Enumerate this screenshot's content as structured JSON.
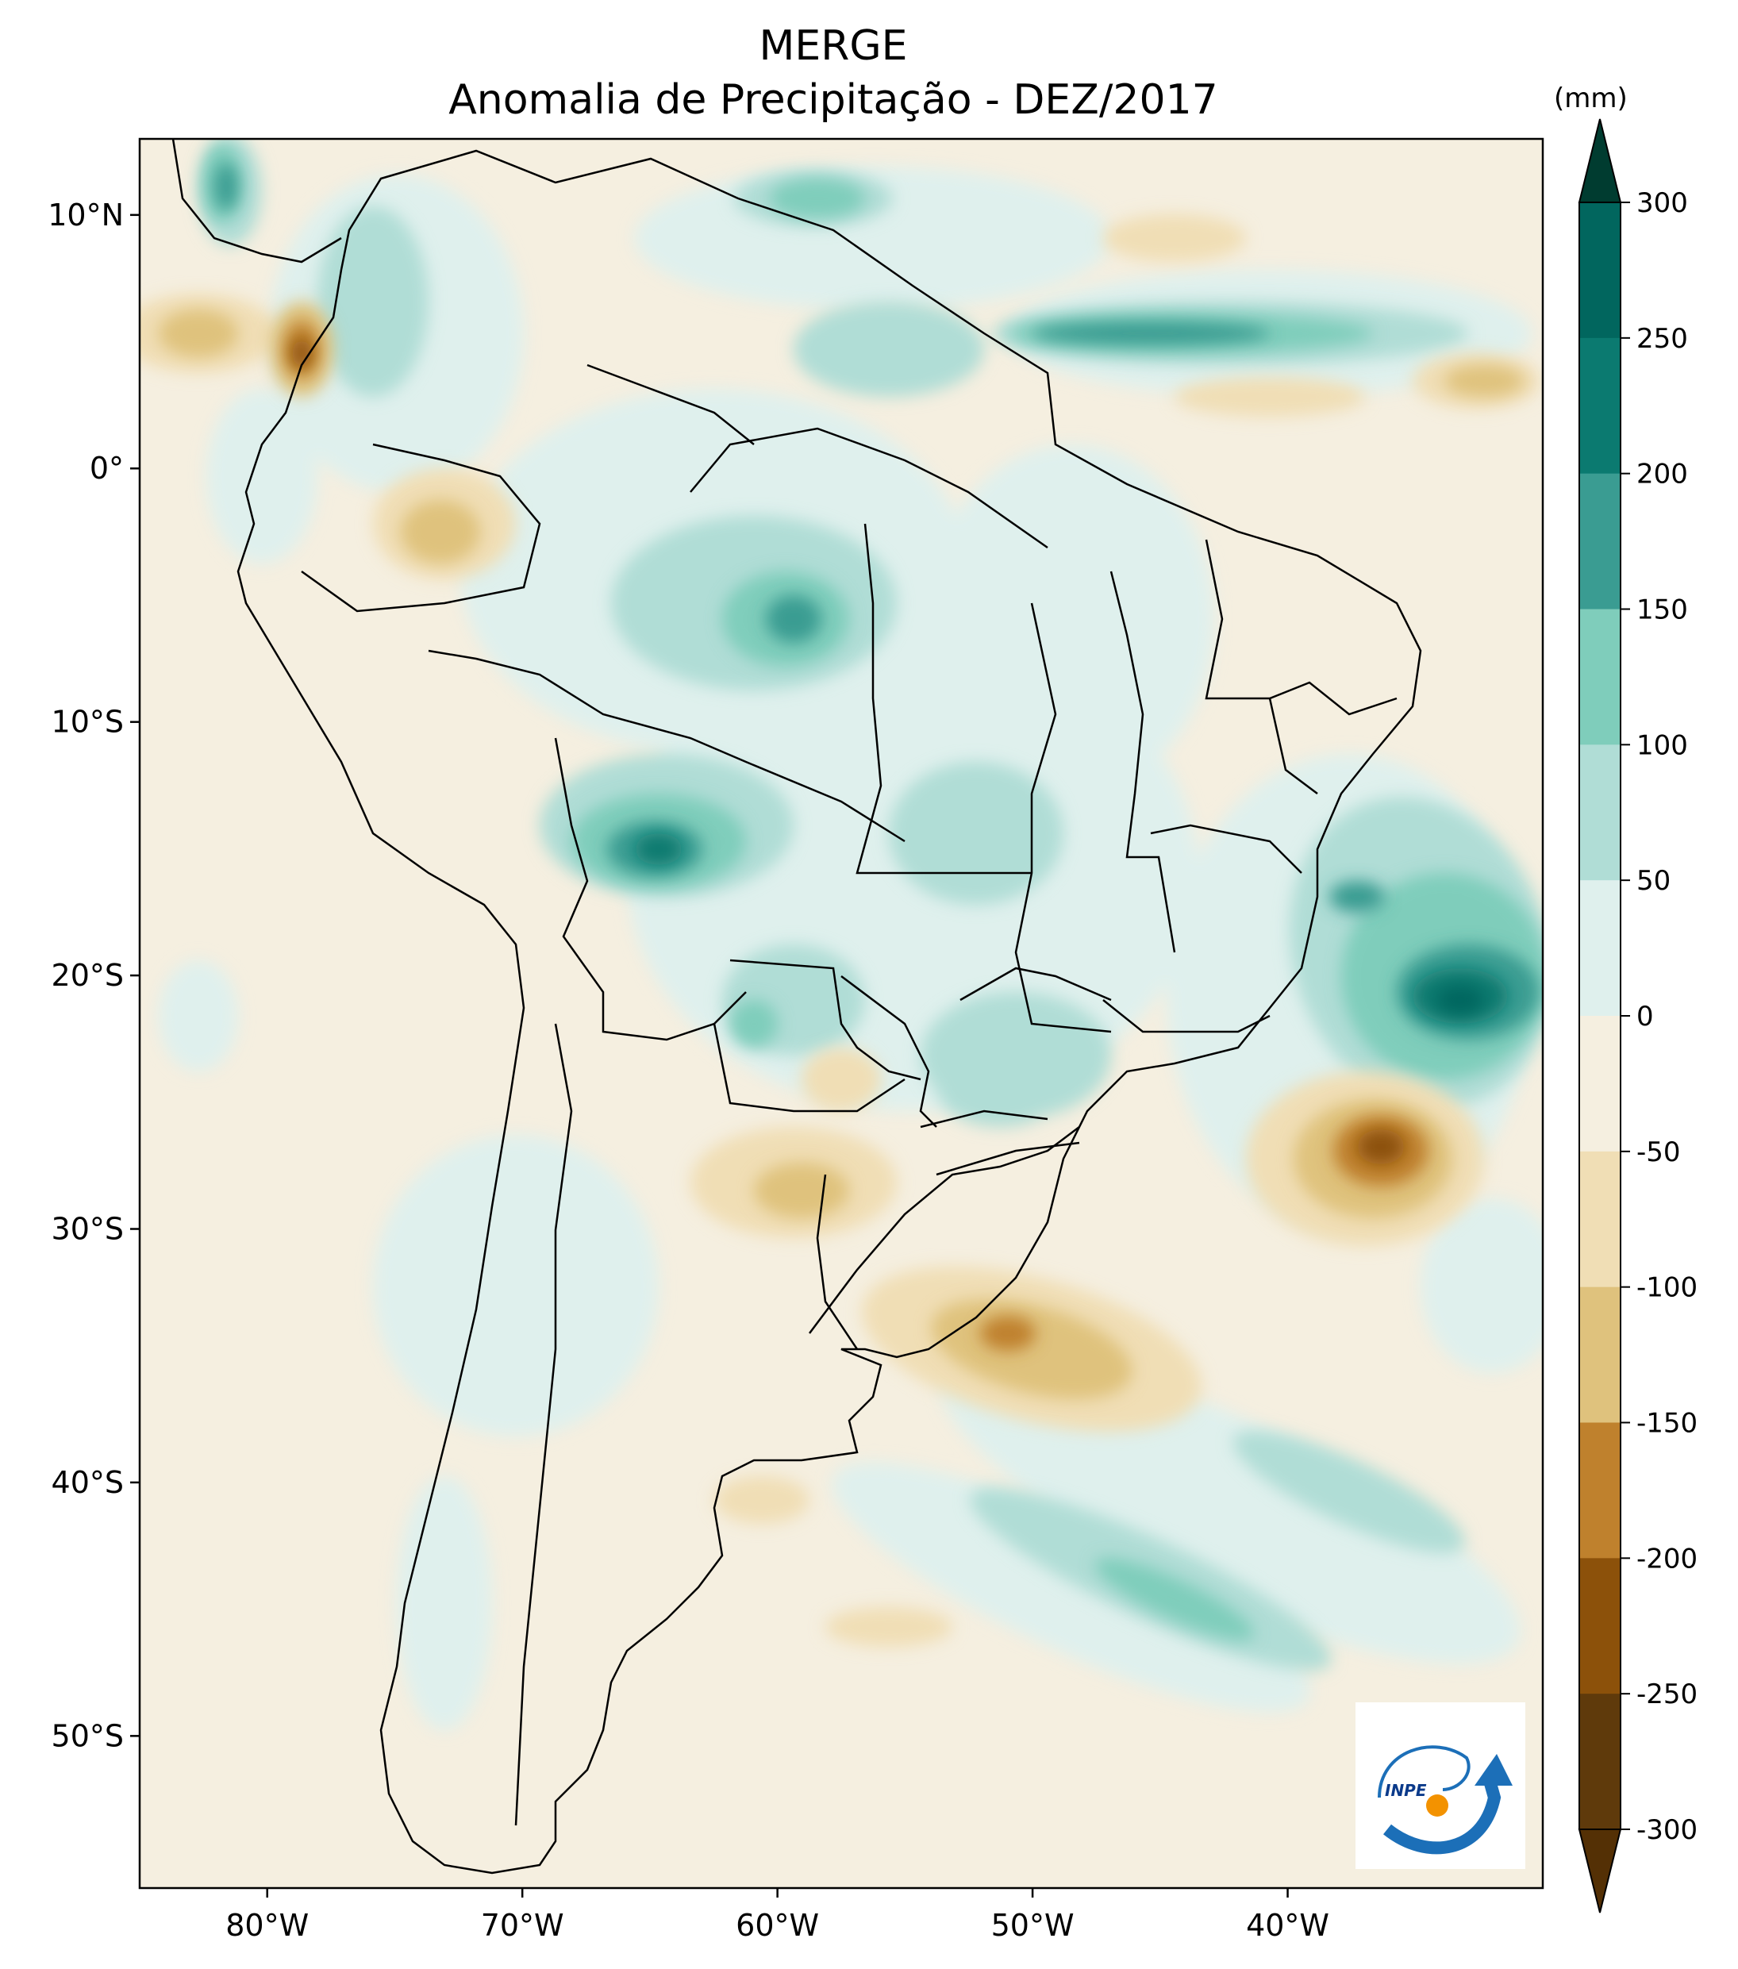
{
  "title": {
    "line1": "MERGE",
    "line2": "Anomalia de Precipitação - DEZ/2017"
  },
  "map": {
    "region": "South America",
    "lon_range": [
      -85,
      -30
    ],
    "lat_range": [
      -56,
      13
    ],
    "lat_ticks": [
      {
        "value": 10,
        "label": "10°N"
      },
      {
        "value": 0,
        "label": "0°"
      },
      {
        "value": -10,
        "label": "10°S"
      },
      {
        "value": -20,
        "label": "20°S"
      },
      {
        "value": -30,
        "label": "30°S"
      },
      {
        "value": -40,
        "label": "40°S"
      },
      {
        "value": -50,
        "label": "50°S"
      }
    ],
    "lon_ticks": [
      {
        "value": -80,
        "label": "80°W"
      },
      {
        "value": -70,
        "label": "70°W"
      },
      {
        "value": -60,
        "label": "60°W"
      },
      {
        "value": -50,
        "label": "50°W"
      },
      {
        "value": -40,
        "label": "40°W"
      }
    ]
  },
  "colorbar": {
    "unit": "(mm)",
    "levels": [
      {
        "value": 300,
        "label": "300"
      },
      {
        "value": 250,
        "label": "250"
      },
      {
        "value": 200,
        "label": "200"
      },
      {
        "value": 150,
        "label": "150"
      },
      {
        "value": 100,
        "label": "100"
      },
      {
        "value": 50,
        "label": "50"
      },
      {
        "value": 0,
        "label": "0"
      },
      {
        "value": -50,
        "label": "-50"
      },
      {
        "value": -100,
        "label": "-100"
      },
      {
        "value": -150,
        "label": "-150"
      },
      {
        "value": -200,
        "label": "-200"
      },
      {
        "value": -250,
        "label": "-250"
      },
      {
        "value": -300,
        "label": "-300"
      }
    ],
    "colors_top_to_bottom": [
      "#003c30",
      "#01665e",
      "#0b7a70",
      "#3a9c92",
      "#7fcdbb",
      "#b0ddd6",
      "#dff0ed",
      "#f5efe0",
      "#f0deb5",
      "#dfc27d",
      "#bf812d",
      "#8c510a",
      "#5f3a0b",
      "#543005"
    ]
  },
  "logo": {
    "text": "INPE",
    "colors": {
      "blue": "#1c6fb8",
      "orange": "#f39200"
    }
  }
}
